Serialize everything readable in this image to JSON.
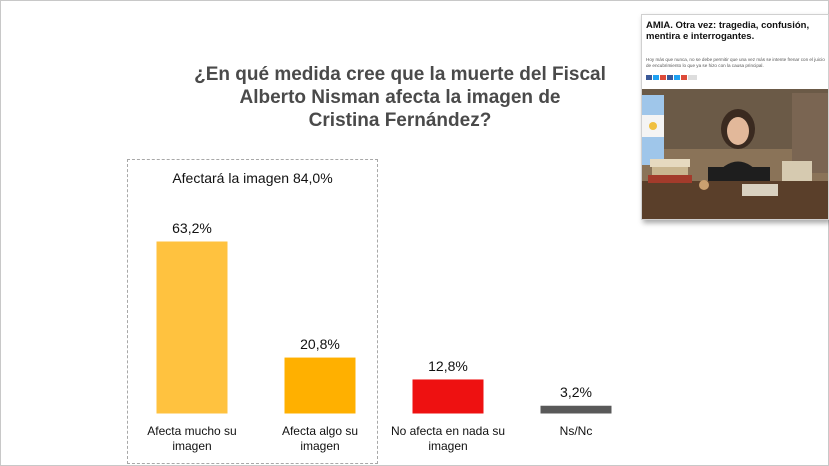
{
  "chart_data": {
    "type": "bar",
    "title": "¿En qué medida cree que la muerte del Fiscal Alberto Nisman afecta la imagen de Cristina Fernández?",
    "categories": [
      "Afecta mucho su imagen",
      "Afecta algo su imagen",
      "No afecta en nada su imagen",
      "Ns/Nc"
    ],
    "values": [
      63.2,
      20.8,
      12.8,
      3.2
    ],
    "value_labels": [
      "63,2%",
      "20,8%",
      "12,8%",
      "3,2%"
    ],
    "colors": [
      "#FFC23F",
      "#FFB000",
      "#EE1111",
      "#595959"
    ],
    "group_annotation": "Afectará la imagen 84,0%",
    "ylim": [
      0,
      70
    ],
    "grid": false,
    "legend": "none"
  },
  "title_lines": [
    "¿En qué medida cree que la muerte del Fiscal",
    "Alberto Nisman afecta la imagen de",
    "Cristina Fernández?"
  ],
  "news_card": {
    "headline": "AMIA. Otra vez: tragedia, confusión, mentira e interrogantes.",
    "summary": "Hoy más que nunca, no se debe permitir que una vez más se intente frenar con el juicio de encubrimiento lo que ya se hizo con la causa principal."
  }
}
